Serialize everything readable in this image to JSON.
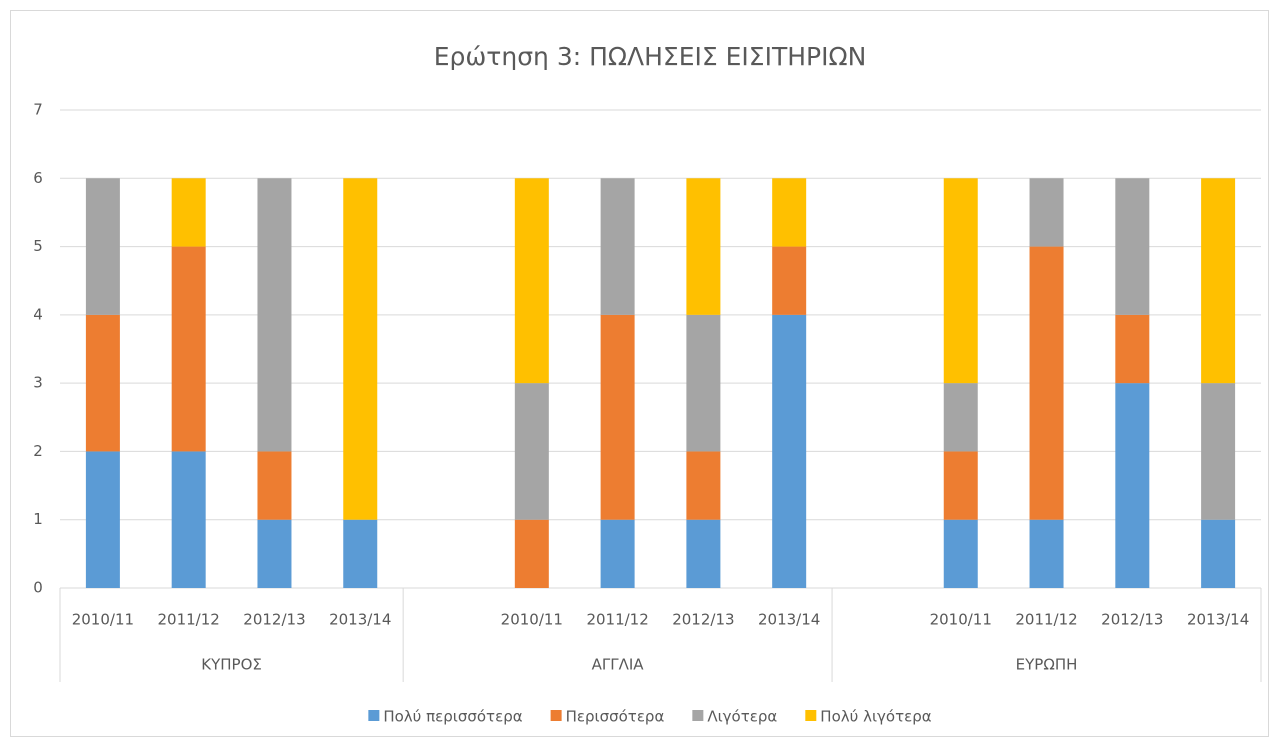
{
  "chart_data": {
    "type": "stacked_bar",
    "title": "Ερώτηση 3: ΠΩΛΗΣΕΙΣ ΕΙΣΙΤΗΡΙΩΝ",
    "categories": [
      "2010/11",
      "2011/12",
      "2012/13",
      "2013/14",
      null,
      "2010/11",
      "2011/12",
      "2012/13",
      "2013/14",
      null,
      "2010/11",
      "2011/12",
      "2012/13",
      "2013/14"
    ],
    "groups": [
      "ΚΥΠΡΟΣ",
      "ΑΓΓΛΙΑ",
      "ΕΥΡΩΠΗ"
    ],
    "series": [
      {
        "name": "Πολύ περισσότερα",
        "color": "#5b9bd5",
        "values": [
          2,
          2,
          1,
          1,
          null,
          0,
          1,
          1,
          4,
          null,
          1,
          1,
          3,
          1
        ]
      },
      {
        "name": "Περισσότερα",
        "color": "#ed7d31",
        "values": [
          2,
          3,
          1,
          0,
          null,
          1,
          3,
          1,
          1,
          null,
          1,
          4,
          1,
          0
        ]
      },
      {
        "name": "Λιγότερα",
        "color": "#a5a5a5",
        "values": [
          2,
          0,
          4,
          0,
          null,
          2,
          2,
          2,
          0,
          null,
          1,
          1,
          2,
          2
        ]
      },
      {
        "name": "Πολύ λιγότερα",
        "color": "#ffc000",
        "values": [
          0,
          1,
          0,
          5,
          null,
          3,
          0,
          2,
          1,
          null,
          3,
          0,
          0,
          3
        ]
      }
    ],
    "ylim": [
      0,
      7
    ],
    "yticks": [
      0,
      1,
      2,
      3,
      4,
      5,
      6,
      7
    ],
    "grid": true,
    "legend": "bottom"
  }
}
